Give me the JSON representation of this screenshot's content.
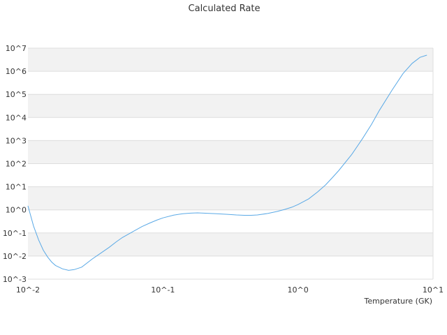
{
  "chart_data": {
    "type": "line",
    "title": "Calculated Rate",
    "xlabel": "Temperature (GK)",
    "ylabel": "",
    "x_scale": "log",
    "y_scale": "log",
    "xlim": [
      0.01,
      10
    ],
    "ylim": [
      0.001,
      10000000
    ],
    "grid": true,
    "band_color_alt": "#f2f2f2",
    "line_color": "#5aa9e6",
    "x_ticks": [
      {
        "value": 0.01,
        "label": "10^-2"
      },
      {
        "value": 0.1,
        "label": "10^-1"
      },
      {
        "value": 1,
        "label": "10^0"
      },
      {
        "value": 10,
        "label": "10^1"
      }
    ],
    "y_ticks": [
      {
        "value": 0.001,
        "label": "10^-3"
      },
      {
        "value": 0.01,
        "label": "10^-2"
      },
      {
        "value": 0.1,
        "label": "10^-1"
      },
      {
        "value": 1,
        "label": "10^0"
      },
      {
        "value": 10,
        "label": "10^1"
      },
      {
        "value": 100,
        "label": "10^2"
      },
      {
        "value": 1000,
        "label": "10^3"
      },
      {
        "value": 10000,
        "label": "10^4"
      },
      {
        "value": 100000,
        "label": "10^5"
      },
      {
        "value": 1000000,
        "label": "10^6"
      },
      {
        "value": 10000000,
        "label": "10^7"
      }
    ],
    "series": [
      {
        "x": [
          0.01,
          0.011,
          0.012,
          0.013,
          0.014,
          0.015,
          0.016,
          0.018,
          0.02,
          0.022,
          0.025,
          0.03,
          0.035,
          0.04,
          0.045,
          0.05,
          0.06,
          0.07,
          0.08,
          0.09,
          0.1,
          0.12,
          0.14,
          0.16,
          0.18,
          0.2,
          0.25,
          0.3,
          0.35,
          0.4,
          0.45,
          0.5,
          0.6,
          0.7,
          0.8,
          0.9,
          1.0,
          1.2,
          1.4,
          1.6,
          1.8,
          2.0,
          2.5,
          3.0,
          3.5,
          4.0,
          5.0,
          6.0,
          7.0,
          8.0,
          9.0
        ],
        "y": [
          1.5,
          0.2,
          0.05,
          0.018,
          0.009,
          0.0055,
          0.0039,
          0.0028,
          0.0024,
          0.0026,
          0.0033,
          0.0075,
          0.014,
          0.024,
          0.041,
          0.063,
          0.115,
          0.19,
          0.27,
          0.36,
          0.45,
          0.59,
          0.68,
          0.72,
          0.74,
          0.72,
          0.68,
          0.64,
          0.6,
          0.58,
          0.58,
          0.6,
          0.7,
          0.85,
          1.05,
          1.3,
          1.7,
          3.0,
          6.0,
          12.0,
          25.0,
          50.0,
          250.0,
          1200.0,
          5000.0,
          20000.0,
          160000.0,
          800000.0,
          2200000.0,
          4000000.0,
          5000000.0
        ]
      }
    ]
  }
}
